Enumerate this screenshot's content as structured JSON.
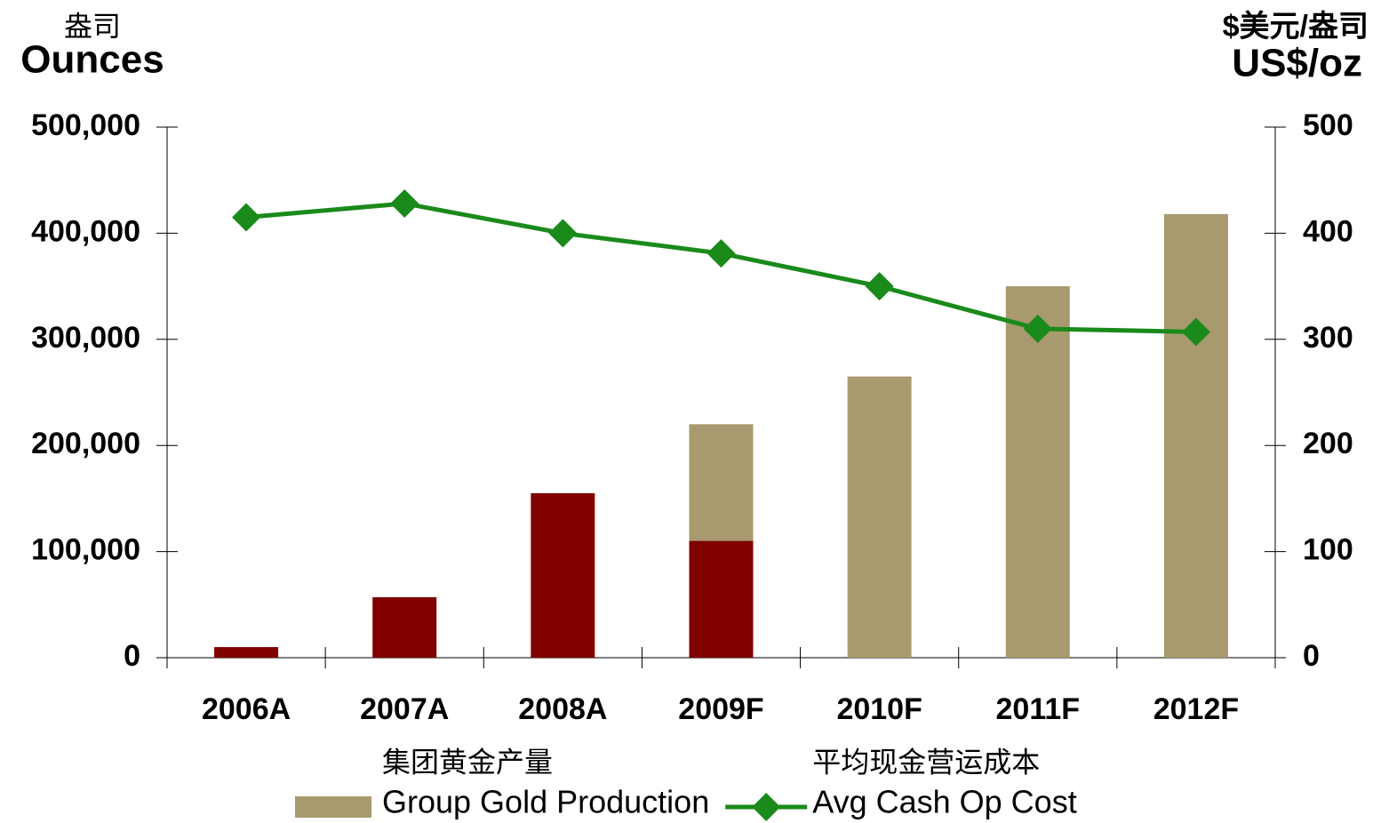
{
  "chart_data": {
    "type": "bar",
    "y_label": "Ounces",
    "y_label_zh": "盎司",
    "y2_label": "US$/oz",
    "y2_label_zh": "$美元/盎司",
    "categories": [
      "2006A",
      "2007A",
      "2008A",
      "2009F",
      "2010F",
      "2011F",
      "2012F"
    ],
    "series": [
      {
        "name": "Group Gold Production",
        "name_zh": "集团黄金产量",
        "type": "bar",
        "color": "#a89a6e",
        "values": [
          null,
          null,
          null,
          220000,
          265000,
          350000,
          418000
        ]
      },
      {
        "type": "bar",
        "color": "#800000",
        "values": [
          10000,
          57000,
          155000,
          110000,
          null,
          null,
          null
        ]
      },
      {
        "name": "Avg Cash Op Cost",
        "name_zh": "平均现金营运成本",
        "type": "line",
        "color": "#1a8a1a",
        "axis": "y2",
        "values": [
          415,
          428,
          400,
          381,
          350,
          310,
          307
        ]
      }
    ],
    "ylim": [
      0,
      500000
    ],
    "yticks": [
      0,
      {
        "value": 100000,
        "label": "100,000"
      },
      {
        "value": 200000,
        "label": "200,000"
      },
      {
        "value": 300000,
        "label": "300,000"
      },
      {
        "value": 400000,
        "label": "400,000"
      },
      {
        "value": 500000,
        "label": "500,000"
      }
    ],
    "y2lim": [
      0,
      500
    ],
    "y2ticks": [
      0,
      100,
      200,
      300,
      400,
      500
    ]
  }
}
